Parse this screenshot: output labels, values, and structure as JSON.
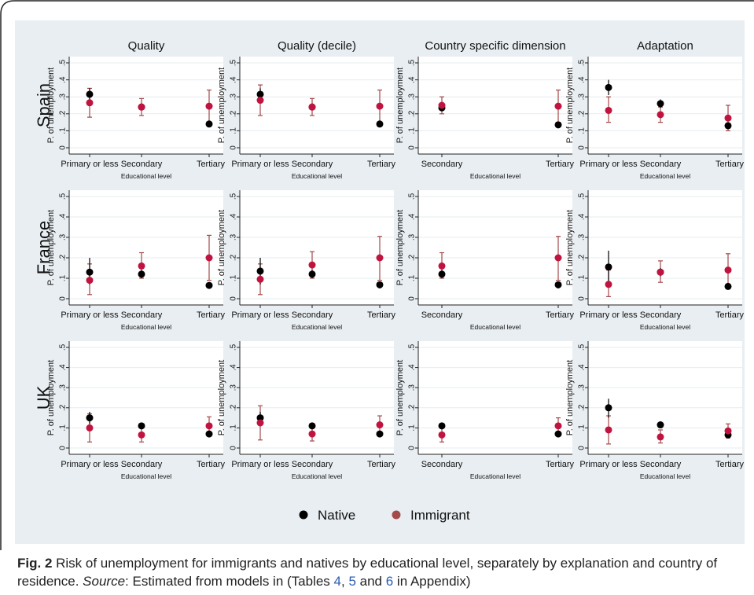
{
  "figure": {
    "label": "Fig. 2",
    "caption_text": " Risk of unemployment for immigrants and natives by educational level, separately by explanation and country of residence. ",
    "source_label": "Source",
    "source_text": ": Estimated from models in (Tables ",
    "table_ref_1": "4",
    "sep_1": ", ",
    "table_ref_2": "5",
    "sep_2": " and ",
    "table_ref_3": "6",
    "tail": " in Appendix)"
  },
  "colors": {
    "native": "#000000",
    "immigrant": "#c0133f",
    "immigrant_bar": "#a34a4a",
    "panel_bg": "#e8eef2",
    "plot_bg": "#ffffff"
  },
  "chart_data": {
    "type": "scatter",
    "columns": [
      "Quality",
      "Quality (decile)",
      "Country specific dimension",
      "Adaptation"
    ],
    "rows": [
      "Spain",
      "France",
      "UK"
    ],
    "ylabel": "P. of unemployment",
    "xlabel": "Educational level",
    "ylim": [
      0,
      0.5
    ],
    "yticks": [
      "0",
      ".1",
      ".2",
      ".3",
      ".4",
      ".5"
    ],
    "legend": {
      "position": "bottom",
      "items": [
        {
          "key": "native",
          "label": "Native"
        },
        {
          "key": "immigrant",
          "label": "Immigrant"
        }
      ]
    },
    "panels": [
      {
        "row": "Spain",
        "col": "Quality",
        "categories": [
          "Primary or less",
          "Secondary",
          "Tertiary"
        ],
        "native": [
          {
            "y": 0.315,
            "lo": 0.28,
            "hi": 0.35
          },
          {
            "y": 0.24,
            "lo": 0.22,
            "hi": 0.26
          },
          {
            "y": 0.14,
            "lo": 0.12,
            "hi": 0.16
          }
        ],
        "immigrant": [
          {
            "y": 0.265,
            "lo": 0.18,
            "hi": 0.35
          },
          {
            "y": 0.24,
            "lo": 0.19,
            "hi": 0.29
          },
          {
            "y": 0.245,
            "lo": 0.15,
            "hi": 0.34
          }
        ]
      },
      {
        "row": "Spain",
        "col": "Quality (decile)",
        "categories": [
          "Primary or less",
          "Secondary",
          "Tertiary"
        ],
        "native": [
          {
            "y": 0.315,
            "lo": 0.28,
            "hi": 0.35
          },
          {
            "y": 0.24,
            "lo": 0.22,
            "hi": 0.26
          },
          {
            "y": 0.14,
            "lo": 0.12,
            "hi": 0.16
          }
        ],
        "immigrant": [
          {
            "y": 0.28,
            "lo": 0.19,
            "hi": 0.37
          },
          {
            "y": 0.24,
            "lo": 0.19,
            "hi": 0.29
          },
          {
            "y": 0.245,
            "lo": 0.15,
            "hi": 0.34
          }
        ]
      },
      {
        "row": "Spain",
        "col": "Country specific dimension",
        "categories": [
          "Secondary",
          "Tertiary"
        ],
        "native": [
          {
            "y": 0.235,
            "lo": 0.215,
            "hi": 0.255
          },
          {
            "y": 0.135,
            "lo": 0.115,
            "hi": 0.155
          }
        ],
        "immigrant": [
          {
            "y": 0.25,
            "lo": 0.2,
            "hi": 0.3
          },
          {
            "y": 0.245,
            "lo": 0.15,
            "hi": 0.34
          }
        ]
      },
      {
        "row": "Spain",
        "col": "Adaptation",
        "categories": [
          "Primary or less",
          "Secondary",
          "Tertiary"
        ],
        "native": [
          {
            "y": 0.355,
            "lo": 0.31,
            "hi": 0.4
          },
          {
            "y": 0.26,
            "lo": 0.235,
            "hi": 0.285
          },
          {
            "y": 0.13,
            "lo": 0.11,
            "hi": 0.15
          }
        ],
        "immigrant": [
          {
            "y": 0.22,
            "lo": 0.15,
            "hi": 0.3
          },
          {
            "y": 0.195,
            "lo": 0.15,
            "hi": 0.24
          },
          {
            "y": 0.175,
            "lo": 0.1,
            "hi": 0.25
          }
        ]
      },
      {
        "row": "France",
        "col": "Quality",
        "categories": [
          "Primary or less",
          "Secondary",
          "Tertiary"
        ],
        "native": [
          {
            "y": 0.13,
            "lo": 0.07,
            "hi": 0.2
          },
          {
            "y": 0.12,
            "lo": 0.1,
            "hi": 0.14
          },
          {
            "y": 0.065,
            "lo": 0.05,
            "hi": 0.08
          }
        ],
        "immigrant": [
          {
            "y": 0.09,
            "lo": 0.02,
            "hi": 0.17
          },
          {
            "y": 0.16,
            "lo": 0.1,
            "hi": 0.225
          },
          {
            "y": 0.2,
            "lo": 0.09,
            "hi": 0.31
          }
        ]
      },
      {
        "row": "France",
        "col": "Quality (decile)",
        "categories": [
          "Primary or less",
          "Secondary",
          "Tertiary"
        ],
        "native": [
          {
            "y": 0.135,
            "lo": 0.07,
            "hi": 0.2
          },
          {
            "y": 0.12,
            "lo": 0.1,
            "hi": 0.14
          },
          {
            "y": 0.068,
            "lo": 0.05,
            "hi": 0.085
          }
        ],
        "immigrant": [
          {
            "y": 0.095,
            "lo": 0.02,
            "hi": 0.17
          },
          {
            "y": 0.165,
            "lo": 0.1,
            "hi": 0.23
          },
          {
            "y": 0.2,
            "lo": 0.09,
            "hi": 0.305
          }
        ]
      },
      {
        "row": "France",
        "col": "Country specific dimension",
        "categories": [
          "Secondary",
          "Tertiary"
        ],
        "native": [
          {
            "y": 0.12,
            "lo": 0.1,
            "hi": 0.14
          },
          {
            "y": 0.068,
            "lo": 0.05,
            "hi": 0.085
          }
        ],
        "immigrant": [
          {
            "y": 0.16,
            "lo": 0.1,
            "hi": 0.225
          },
          {
            "y": 0.2,
            "lo": 0.09,
            "hi": 0.305
          }
        ]
      },
      {
        "row": "France",
        "col": "Adaptation",
        "categories": [
          "Primary or less",
          "Secondary",
          "Tertiary"
        ],
        "native": [
          {
            "y": 0.155,
            "lo": 0.07,
            "hi": 0.235
          },
          {
            "y": 0.13,
            "lo": 0.11,
            "hi": 0.15
          },
          {
            "y": 0.06,
            "lo": 0.045,
            "hi": 0.075
          }
        ],
        "immigrant": [
          {
            "y": 0.07,
            "lo": 0.01,
            "hi": 0.14
          },
          {
            "y": 0.13,
            "lo": 0.08,
            "hi": 0.185
          },
          {
            "y": 0.14,
            "lo": 0.06,
            "hi": 0.22
          }
        ]
      },
      {
        "row": "UK",
        "col": "Quality",
        "categories": [
          "Primary or less",
          "Secondary",
          "Tertiary"
        ],
        "native": [
          {
            "y": 0.15,
            "lo": 0.12,
            "hi": 0.18
          },
          {
            "y": 0.11,
            "lo": 0.1,
            "hi": 0.12
          },
          {
            "y": 0.07,
            "lo": 0.06,
            "hi": 0.08
          }
        ],
        "immigrant": [
          {
            "y": 0.1,
            "lo": 0.03,
            "hi": 0.17
          },
          {
            "y": 0.065,
            "lo": 0.03,
            "hi": 0.1
          },
          {
            "y": 0.11,
            "lo": 0.07,
            "hi": 0.155
          }
        ]
      },
      {
        "row": "UK",
        "col": "Quality (decile)",
        "categories": [
          "Primary or less",
          "Secondary",
          "Tertiary"
        ],
        "native": [
          {
            "y": 0.15,
            "lo": 0.12,
            "hi": 0.18
          },
          {
            "y": 0.11,
            "lo": 0.1,
            "hi": 0.12
          },
          {
            "y": 0.07,
            "lo": 0.06,
            "hi": 0.08
          }
        ],
        "immigrant": [
          {
            "y": 0.125,
            "lo": 0.04,
            "hi": 0.21
          },
          {
            "y": 0.07,
            "lo": 0.035,
            "hi": 0.105
          },
          {
            "y": 0.115,
            "lo": 0.075,
            "hi": 0.16
          }
        ]
      },
      {
        "row": "UK",
        "col": "Country specific dimension",
        "categories": [
          "Secondary",
          "Tertiary"
        ],
        "native": [
          {
            "y": 0.11,
            "lo": 0.1,
            "hi": 0.12
          },
          {
            "y": 0.07,
            "lo": 0.06,
            "hi": 0.08
          }
        ],
        "immigrant": [
          {
            "y": 0.065,
            "lo": 0.03,
            "hi": 0.1
          },
          {
            "y": 0.11,
            "lo": 0.07,
            "hi": 0.15
          }
        ]
      },
      {
        "row": "UK",
        "col": "Adaptation",
        "categories": [
          "Primary or less",
          "Secondary",
          "Tertiary"
        ],
        "native": [
          {
            "y": 0.2,
            "lo": 0.15,
            "hi": 0.245
          },
          {
            "y": 0.115,
            "lo": 0.105,
            "hi": 0.125
          },
          {
            "y": 0.065,
            "lo": 0.055,
            "hi": 0.075
          }
        ],
        "immigrant": [
          {
            "y": 0.09,
            "lo": 0.02,
            "hi": 0.16
          },
          {
            "y": 0.055,
            "lo": 0.025,
            "hi": 0.09
          },
          {
            "y": 0.085,
            "lo": 0.05,
            "hi": 0.12
          }
        ]
      }
    ]
  }
}
